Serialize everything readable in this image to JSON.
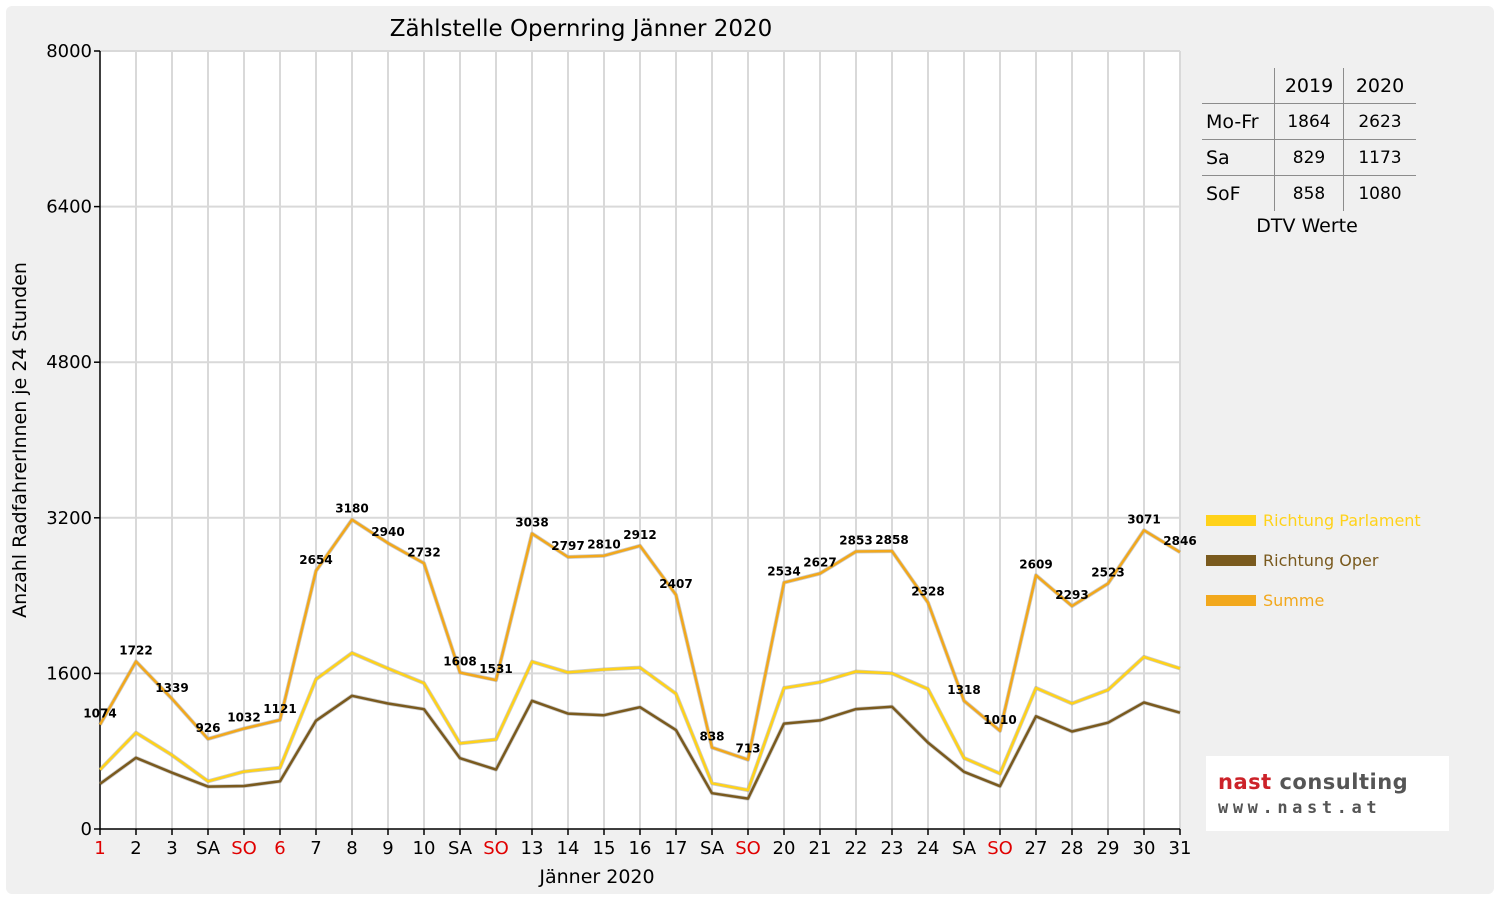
{
  "chart_data": {
    "type": "line",
    "title": "Zählstelle Opernring Jänner 2020",
    "xlabel": "Jänner 2020",
    "ylabel": "Anzahl RadfahrerInnen je 24 Stunden",
    "ylim": [
      0,
      8000
    ],
    "yticks": [
      0,
      1600,
      3200,
      4800,
      6400,
      8000
    ],
    "grid": true,
    "legend_position": "right",
    "categories": [
      "1",
      "2",
      "3",
      "SA",
      "SO",
      "6",
      "7",
      "8",
      "9",
      "10",
      "SA",
      "SO",
      "13",
      "14",
      "15",
      "16",
      "17",
      "SA",
      "SO",
      "20",
      "21",
      "22",
      "23",
      "24",
      "SA",
      "SO",
      "27",
      "28",
      "29",
      "30",
      "31"
    ],
    "red_tick_indices": [
      0,
      4,
      5,
      11,
      18,
      25
    ],
    "series": [
      {
        "name": "Richtung Parlament",
        "color": "#ffd21a",
        "values": [
          610,
          990,
          760,
          490,
          590,
          630,
          1540,
          1810,
          1650,
          1500,
          880,
          920,
          1720,
          1610,
          1640,
          1660,
          1390,
          470,
          400,
          1450,
          1510,
          1620,
          1600,
          1440,
          730,
          570,
          1450,
          1290,
          1430,
          1770,
          1650
        ]
      },
      {
        "name": "Richtung Oper",
        "color": "#7a5a1e",
        "values": [
          464,
          732,
          579,
          436,
          442,
          491,
          1114,
          1370,
          1290,
          1232,
          728,
          611,
          1318,
          1187,
          1170,
          1252,
          1017,
          368,
          313,
          1084,
          1117,
          1233,
          1258,
          888,
          588,
          440,
          1159,
          1003,
          1093,
          1301,
          1196
        ]
      },
      {
        "name": "Summe",
        "color": "#f2a81c",
        "values": [
          1074,
          1722,
          1339,
          926,
          1032,
          1121,
          2654,
          3180,
          2940,
          2732,
          1608,
          1531,
          3038,
          2797,
          2810,
          2912,
          2407,
          838,
          713,
          2534,
          2627,
          2853,
          2858,
          2328,
          1318,
          1010,
          2609,
          2293,
          2523,
          3071,
          2846
        ]
      }
    ],
    "data_labels": [
      "1074",
      "1722",
      "1339",
      "926",
      "1032",
      "1121",
      "2654",
      "3180",
      "2940",
      "2732",
      "1608",
      "1531",
      "3038",
      "2797",
      "2810",
      "2912",
      "2407",
      "838",
      "713",
      "2534",
      "2627",
      "2853",
      "2858",
      "2328",
      "1318",
      "1010",
      "2609",
      "2293",
      "2523",
      "3071",
      "2846"
    ]
  },
  "dtv_table": {
    "headers": [
      "",
      "2019",
      "2020"
    ],
    "rows": [
      {
        "label": "Mo-Fr",
        "y2019": "1864",
        "y2020": "2623"
      },
      {
        "label": "Sa",
        "y2019": "829",
        "y2020": "1173"
      },
      {
        "label": "SoF",
        "y2019": "858",
        "y2020": "1080"
      }
    ],
    "caption": "DTV Werte"
  },
  "logo": {
    "line1_part1": "nast",
    "line1_part2": " consulting",
    "line2": "www.nast.at"
  }
}
